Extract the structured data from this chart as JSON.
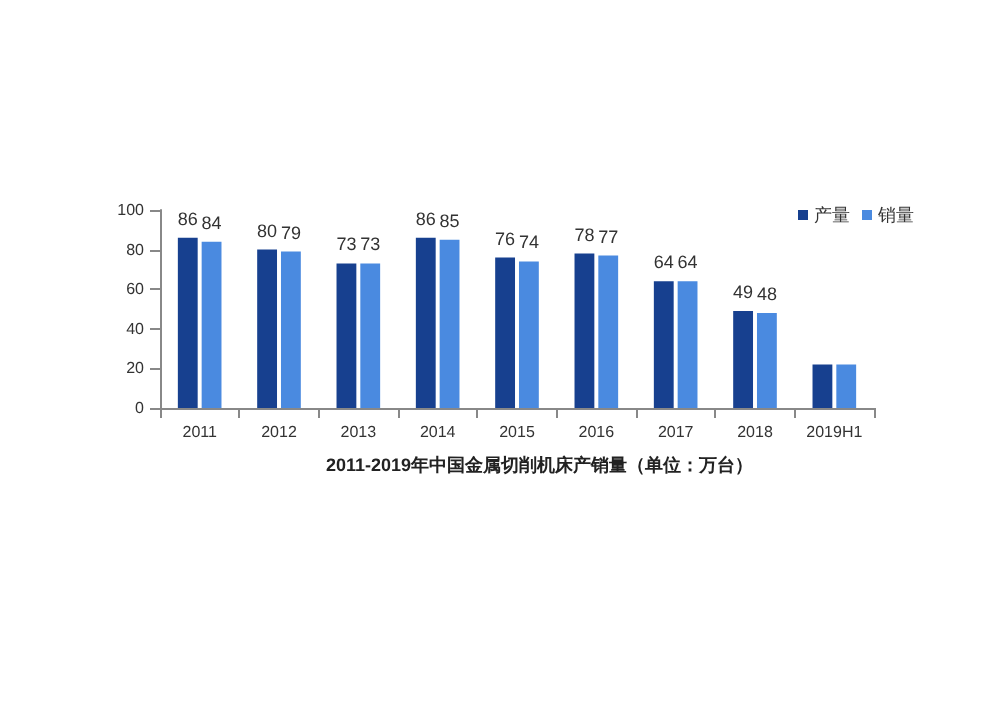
{
  "chart_data": {
    "type": "bar",
    "title": "2011-2019年中国金属切削机床产销量（单位：万台）",
    "categories": [
      "2011",
      "2012",
      "2013",
      "2014",
      "2015",
      "2016",
      "2017",
      "2018",
      "2019H1"
    ],
    "series": [
      {
        "name": "产量",
        "color": "#17408f",
        "values": [
          86,
          80,
          73,
          86,
          76,
          78,
          64,
          49,
          22
        ],
        "value_labels": [
          "86",
          "80",
          "73",
          "86",
          "76",
          "78",
          "64",
          "49",
          null
        ]
      },
      {
        "name": "销量",
        "color": "#4a8ae0",
        "values": [
          84,
          79,
          73,
          85,
          74,
          77,
          64,
          48,
          22
        ],
        "value_labels": [
          "84",
          "79",
          "73",
          "85",
          "74",
          "77",
          "64",
          "48",
          null
        ]
      }
    ],
    "ylim": [
      0,
      100
    ],
    "yticks": [
      0,
      20,
      40,
      60,
      80,
      100
    ],
    "grid": false,
    "legend": "top right"
  }
}
